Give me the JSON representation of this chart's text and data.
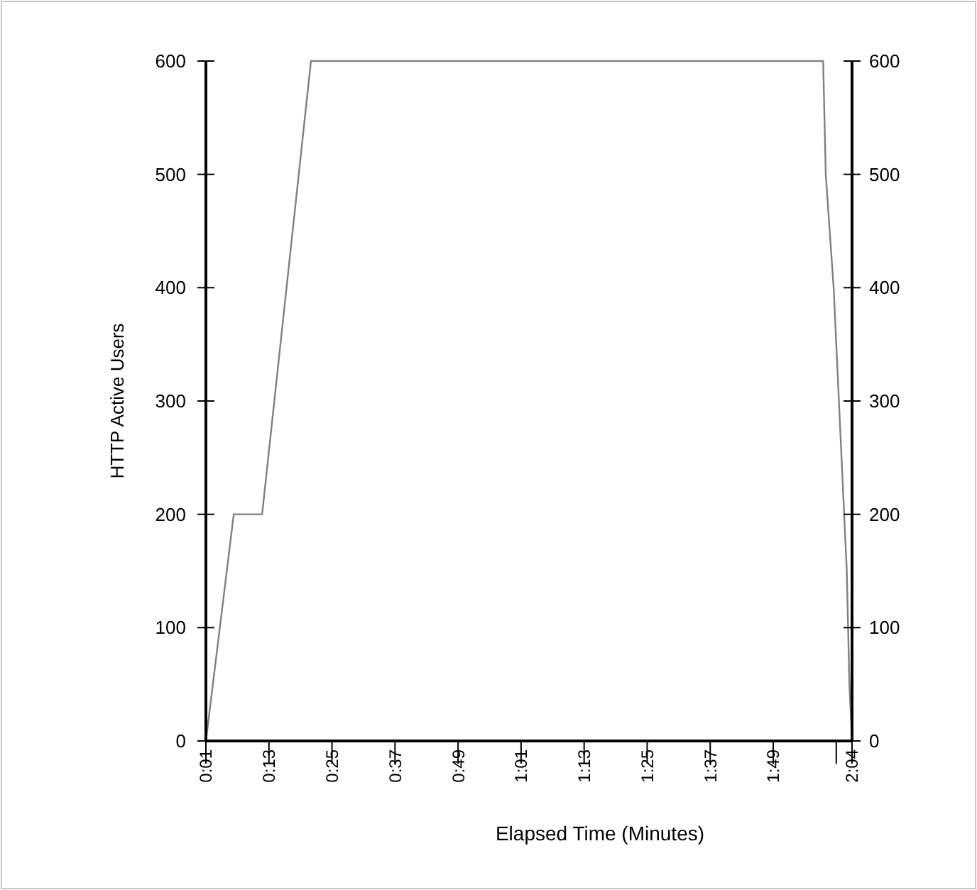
{
  "chart_data": {
    "type": "line",
    "xlabel": "Elapsed Time (Minutes)",
    "ylabel": "HTTP Active Users",
    "series": [
      {
        "color": "#808080",
        "x": [
          1,
          6.3,
          11.7,
          21,
          118.5,
          119,
          120.5,
          121.5,
          122.5,
          123,
          123.5,
          124
        ],
        "values": [
          0,
          200,
          200,
          600,
          600,
          500,
          400,
          300,
          200,
          150,
          50,
          0
        ]
      }
    ],
    "xlim": [
      1,
      124
    ],
    "xticks": [
      {
        "value": 1,
        "label": "0:01"
      },
      {
        "value": 13,
        "label": "0:13"
      },
      {
        "value": 25,
        "label": "0:25"
      },
      {
        "value": 37,
        "label": "0:37"
      },
      {
        "value": 49,
        "label": "0:49"
      },
      {
        "value": 61,
        "label": "1:01"
      },
      {
        "value": 73,
        "label": "1:13"
      },
      {
        "value": 85,
        "label": "1:25"
      },
      {
        "value": 97,
        "label": "1:37"
      },
      {
        "value": 109,
        "label": "1:49"
      },
      {
        "value": 121,
        "label": null
      },
      {
        "value": 124,
        "label": "2:04"
      }
    ],
    "ylim": [
      0,
      600
    ],
    "yticks": [
      0,
      100,
      200,
      300,
      400,
      500,
      600
    ],
    "y2lim": [
      0,
      600
    ],
    "y2ticks": [
      0,
      100,
      200,
      300,
      400,
      500,
      600
    ],
    "grid": false,
    "marker": "none",
    "line_style": "solid"
  }
}
